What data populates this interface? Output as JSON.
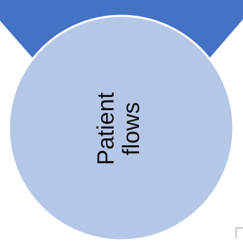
{
  "diagram": {
    "node_label_line1": "Patient",
    "node_label_line2": "flows",
    "colors": {
      "banner_fill": "#4472c4",
      "circle_fill": "#b4c7e7",
      "circle_stroke": "#ffffff",
      "text": "#111111",
      "corner_mark": "#b0b0b0"
    }
  }
}
